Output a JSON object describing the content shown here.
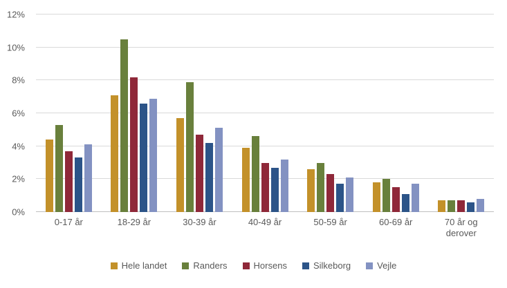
{
  "chart_data": {
    "type": "bar",
    "title": "",
    "categories": [
      "0-17 år",
      "18-29 år",
      "30-39 år",
      "40-49 år",
      "50-59 år",
      "60-69 år",
      "70 år og derover"
    ],
    "series": [
      {
        "name": "Hele landet",
        "color": "#C3912A",
        "values": [
          4.4,
          7.1,
          5.7,
          3.9,
          2.6,
          1.8,
          0.7
        ]
      },
      {
        "name": "Randers",
        "color": "#69803C",
        "values": [
          5.3,
          10.5,
          7.9,
          4.6,
          3.0,
          2.0,
          0.7
        ]
      },
      {
        "name": "Horsens",
        "color": "#8F2839",
        "values": [
          3.7,
          8.2,
          4.7,
          3.0,
          2.3,
          1.5,
          0.7
        ]
      },
      {
        "name": "Silkeborg",
        "color": "#2C5488",
        "values": [
          3.3,
          6.6,
          4.2,
          2.7,
          1.7,
          1.1,
          0.6
        ]
      },
      {
        "name": "Vejle",
        "color": "#8392C2",
        "values": [
          4.1,
          6.9,
          5.1,
          3.2,
          2.1,
          1.7,
          0.8
        ]
      }
    ],
    "xlabel": "",
    "ylabel": "",
    "ylim": [
      0,
      12
    ],
    "ytick_step": 2,
    "ytick_labels": [
      "0%",
      "2%",
      "4%",
      "6%",
      "8%",
      "10%",
      "12%"
    ],
    "grid": true,
    "legend_position": "bottom"
  },
  "colors": {
    "background": "#FFFFFF",
    "gridline": "#D9D9D9",
    "axis_line": "#BFBFBF",
    "axis_text": "#595959"
  }
}
